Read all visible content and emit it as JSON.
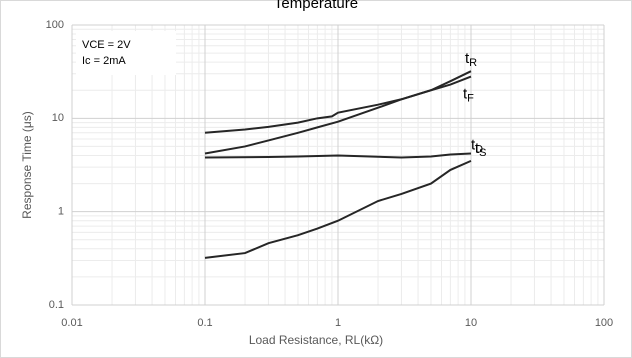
{
  "chart_data": {
    "type": "line",
    "title": "Temperature",
    "x_label": "Load Resistance, RL(kΩ)",
    "y_label": "Response Time (μs)",
    "annotations": [
      "VCE = 2V",
      "Ic = 2mA"
    ],
    "xlog": true,
    "ylog": true,
    "grid": true,
    "minor_grid": true,
    "xlim": [
      0.01,
      100
    ],
    "xticks": [
      0.01,
      0.1,
      1,
      10,
      100
    ],
    "ylim": [
      0.1,
      100
    ],
    "yticks": [
      0.1,
      1,
      10,
      100
    ],
    "series": [
      {
        "name": "tR",
        "color": "#262626",
        "x": [
          0.1,
          0.2,
          0.3,
          0.5,
          0.7,
          0.9,
          1,
          2,
          3,
          5,
          7,
          10
        ],
        "values": [
          7.0,
          7.6,
          8.1,
          9.0,
          10,
          10.5,
          11.5,
          14,
          16,
          20,
          25,
          32
        ]
      },
      {
        "name": "tF",
        "color": "#262626",
        "x": [
          0.1,
          0.2,
          0.3,
          0.5,
          0.7,
          1,
          2,
          3,
          5,
          7,
          10
        ],
        "values": [
          4.2,
          5,
          5.8,
          7,
          8,
          9.2,
          13,
          16,
          20,
          23,
          28
        ]
      },
      {
        "name": "tD",
        "color": "#262626",
        "x": [
          0.1,
          0.3,
          0.5,
          1,
          3,
          5,
          7,
          10
        ],
        "values": [
          3.8,
          3.85,
          3.9,
          4.0,
          3.8,
          3.9,
          4.1,
          4.2
        ]
      },
      {
        "name": "tS",
        "color": "#262626",
        "x": [
          0.1,
          0.2,
          0.3,
          0.5,
          0.7,
          1,
          2,
          3,
          5,
          7,
          10
        ],
        "values": [
          0.32,
          0.36,
          0.46,
          0.56,
          0.66,
          0.8,
          1.3,
          1.55,
          2.0,
          2.8,
          3.5
        ]
      }
    ]
  }
}
